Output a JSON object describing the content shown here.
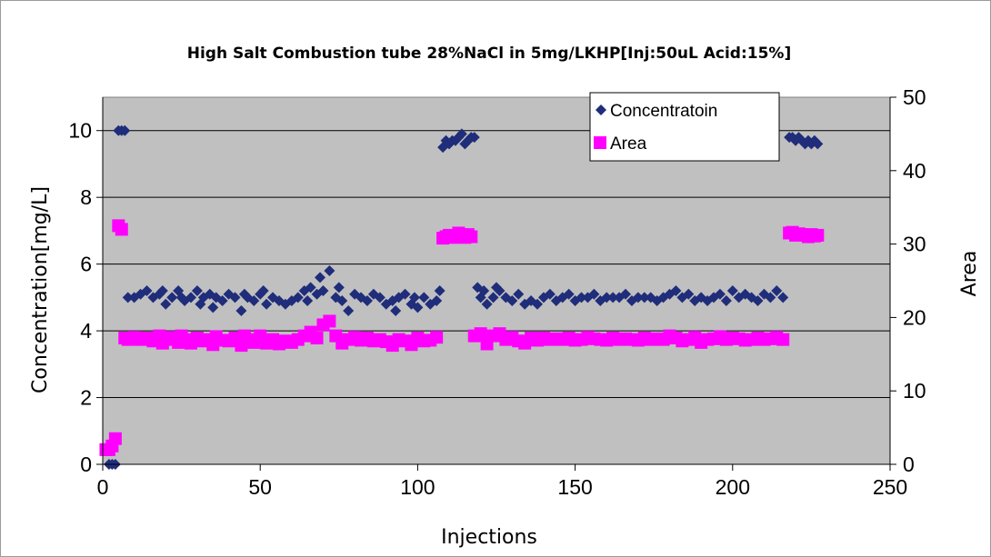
{
  "colors": {
    "plot_background": "#c0c0c0",
    "concentration": "#1f2d7a",
    "area": "#ff00ff",
    "gridline": "#000000"
  },
  "chart_data": {
    "type": "scatter",
    "title": "High Salt  Combustion  tube  28%NaCl in 5mg/LKHP[Inj:50uL Acid:15%]",
    "xlabel": "Injections",
    "ylabel": "Concentration[mg/L]",
    "y2label": "Area",
    "xlim": [
      0,
      250
    ],
    "ylim": [
      0,
      11
    ],
    "y2lim": [
      0,
      50
    ],
    "xticks": [
      "0",
      "50",
      "100",
      "150",
      "200",
      "250"
    ],
    "yticks": [
      "0",
      "2",
      "4",
      "6",
      "8",
      "10"
    ],
    "y2ticks": [
      "0",
      "10",
      "20",
      "30",
      "40",
      "50"
    ],
    "grid": "horizontal major gridlines",
    "legend_position": "top-right",
    "series": [
      {
        "name": "Concentratoin",
        "axis": "left",
        "marker": "diamond",
        "x": [
          2,
          3,
          4,
          5,
          6,
          7,
          8,
          10,
          12,
          14,
          16,
          18,
          19,
          20,
          22,
          24,
          25,
          26,
          28,
          30,
          31,
          32,
          34,
          35,
          36,
          38,
          40,
          42,
          44,
          45,
          46,
          48,
          50,
          51,
          52,
          54,
          56,
          58,
          60,
          62,
          64,
          65,
          66,
          68,
          69,
          70,
          72,
          74,
          75,
          76,
          78,
          80,
          82,
          84,
          86,
          88,
          90,
          92,
          93,
          94,
          96,
          98,
          99,
          100,
          102,
          104,
          106,
          107,
          108,
          109,
          110,
          111,
          112,
          113,
          114,
          115,
          116,
          117,
          118,
          119,
          120,
          121,
          122,
          124,
          125,
          126,
          128,
          130,
          132,
          134,
          136,
          138,
          140,
          142,
          144,
          146,
          148,
          150,
          152,
          154,
          156,
          158,
          160,
          162,
          164,
          166,
          168,
          170,
          172,
          174,
          176,
          178,
          180,
          182,
          184,
          186,
          188,
          190,
          192,
          194,
          196,
          198,
          200,
          202,
          204,
          206,
          208,
          210,
          212,
          214,
          216,
          218,
          219,
          220,
          221,
          222,
          223,
          224,
          225,
          226,
          227
        ],
        "y": [
          0.0,
          0.0,
          0.0,
          10.0,
          10.0,
          10.0,
          5.0,
          5.0,
          5.1,
          5.2,
          5.0,
          5.1,
          5.2,
          4.8,
          5.0,
          5.2,
          5.0,
          4.9,
          5.0,
          5.2,
          4.8,
          5.0,
          5.1,
          4.7,
          5.0,
          4.9,
          5.1,
          5.0,
          4.6,
          5.1,
          5.0,
          4.9,
          5.1,
          5.2,
          4.8,
          5.0,
          4.9,
          4.8,
          4.9,
          5.0,
          5.2,
          4.9,
          5.3,
          5.1,
          5.6,
          5.2,
          5.8,
          5.0,
          5.3,
          4.9,
          4.6,
          5.1,
          5.0,
          4.9,
          5.1,
          5.0,
          4.8,
          4.9,
          4.6,
          5.0,
          5.1,
          4.8,
          5.0,
          4.7,
          5.0,
          4.8,
          4.9,
          5.2,
          9.5,
          9.7,
          9.6,
          9.7,
          9.7,
          9.8,
          9.9,
          9.6,
          9.7,
          9.8,
          9.8,
          5.3,
          5.0,
          5.2,
          4.8,
          5.0,
          5.3,
          5.2,
          5.0,
          4.9,
          5.1,
          4.8,
          4.9,
          4.8,
          5.0,
          5.1,
          4.9,
          5.0,
          5.1,
          4.9,
          5.0,
          5.0,
          5.1,
          4.9,
          5.0,
          5.0,
          5.0,
          5.1,
          4.9,
          5.0,
          5.0,
          5.0,
          4.9,
          5.0,
          5.1,
          5.2,
          5.0,
          5.1,
          4.9,
          5.0,
          4.9,
          5.0,
          5.1,
          4.9,
          5.2,
          5.0,
          5.1,
          5.0,
          4.9,
          5.1,
          5.0,
          5.2,
          5.0,
          9.8,
          9.8,
          9.7,
          9.8,
          9.7,
          9.6,
          9.7,
          9.6,
          9.7,
          9.6
        ]
      },
      {
        "name": "Area",
        "axis": "right",
        "marker": "square",
        "x": [
          1,
          2,
          3,
          4,
          5,
          6,
          7,
          8,
          10,
          12,
          14,
          16,
          18,
          19,
          20,
          22,
          24,
          25,
          26,
          28,
          30,
          32,
          34,
          35,
          36,
          38,
          40,
          42,
          44,
          45,
          46,
          48,
          50,
          52,
          54,
          56,
          58,
          60,
          62,
          64,
          66,
          68,
          70,
          72,
          74,
          76,
          78,
          80,
          82,
          84,
          86,
          88,
          90,
          92,
          94,
          96,
          98,
          100,
          102,
          104,
          106,
          108,
          109,
          110,
          111,
          112,
          113,
          114,
          115,
          116,
          117,
          118,
          120,
          122,
          124,
          126,
          128,
          130,
          132,
          134,
          136,
          138,
          140,
          142,
          144,
          146,
          148,
          150,
          152,
          154,
          156,
          158,
          160,
          162,
          164,
          166,
          168,
          170,
          172,
          174,
          176,
          178,
          180,
          182,
          184,
          186,
          188,
          190,
          192,
          194,
          196,
          198,
          200,
          202,
          204,
          206,
          208,
          210,
          212,
          214,
          216,
          218,
          219,
          220,
          221,
          222,
          223,
          224,
          225,
          226,
          227
        ],
        "y": [
          2.0,
          2.0,
          2.5,
          3.5,
          32.5,
          32.0,
          17.2,
          17.0,
          17.3,
          17.0,
          17.2,
          16.8,
          17.5,
          16.5,
          17.0,
          17.3,
          16.6,
          17.5,
          17.0,
          16.5,
          17.2,
          16.8,
          17.0,
          16.3,
          17.4,
          16.9,
          16.8,
          17.2,
          16.2,
          17.5,
          17.0,
          16.6,
          17.5,
          16.5,
          17.0,
          16.4,
          16.8,
          16.6,
          17.0,
          17.5,
          18.0,
          17.2,
          19.0,
          19.5,
          17.5,
          16.5,
          17.0,
          17.3,
          16.9,
          17.2,
          16.8,
          17.0,
          16.7,
          16.2,
          17.0,
          16.8,
          16.3,
          17.2,
          16.8,
          16.9,
          17.3,
          30.8,
          31.0,
          31.2,
          30.9,
          31.1,
          31.5,
          31.2,
          30.9,
          31.3,
          31.0,
          17.5,
          17.8,
          16.4,
          17.5,
          17.8,
          17.0,
          17.3,
          16.8,
          16.5,
          17.2,
          16.9,
          17.2,
          17.0,
          17.1,
          17.0,
          17.2,
          16.9,
          17.0,
          17.3,
          17.1,
          17.0,
          16.9,
          17.2,
          17.0,
          17.1,
          17.0,
          16.9,
          17.2,
          17.0,
          17.1,
          17.0,
          17.5,
          17.2,
          16.8,
          17.0,
          17.3,
          16.6,
          17.0,
          17.1,
          17.4,
          17.0,
          17.2,
          17.1,
          16.9,
          17.0,
          17.2,
          17.0,
          17.1,
          17.3,
          17.0,
          31.5,
          31.6,
          31.2,
          31.4,
          31.3,
          31.2,
          31.0,
          31.3,
          31.1,
          31.2
        ]
      }
    ]
  }
}
